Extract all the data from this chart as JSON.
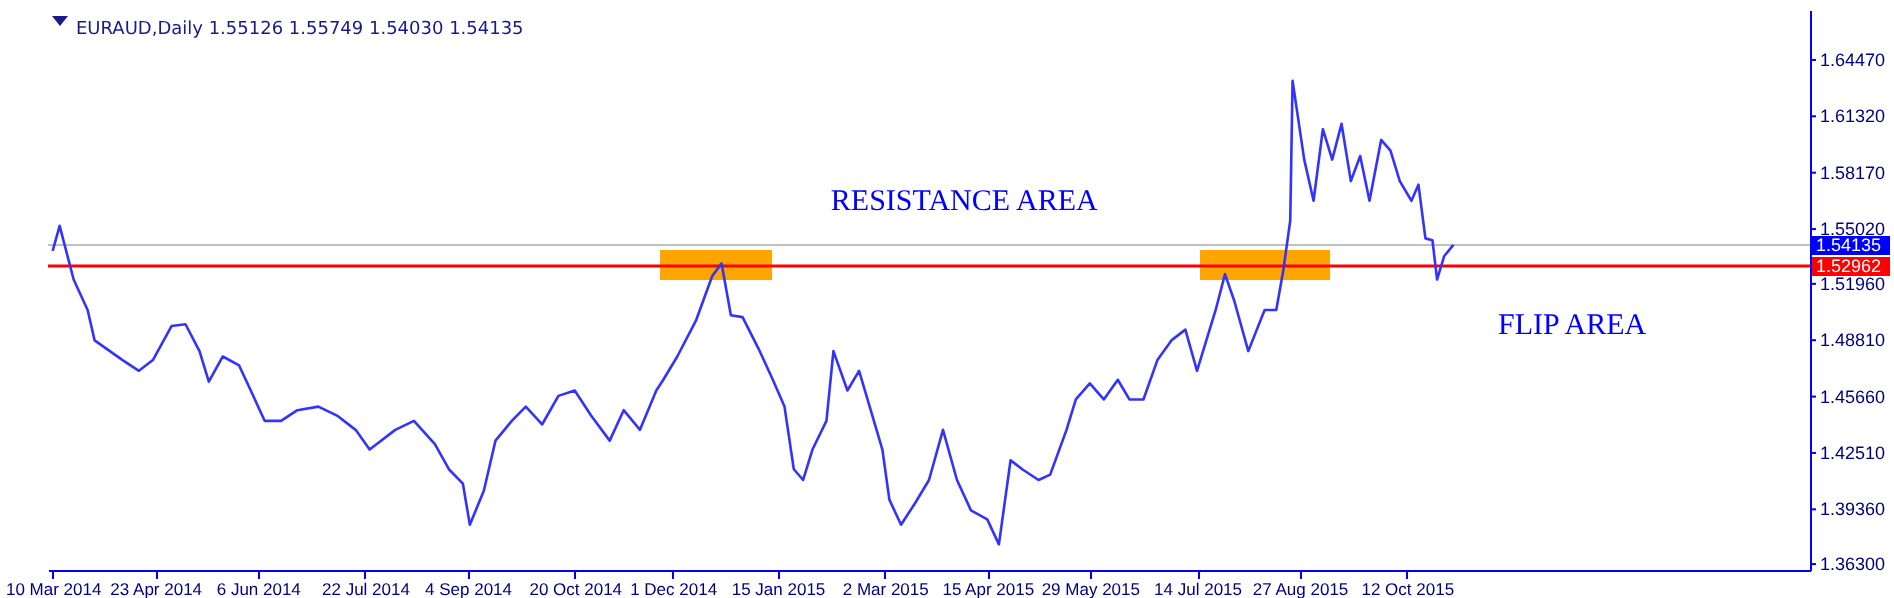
{
  "chart_data": {
    "type": "line",
    "title": "EURAUD,Daily  1.55126 1.55749 1.54030 1.54135",
    "x": [
      "2014-03-10",
      "2014-03-13",
      "2014-03-19",
      "2014-03-25",
      "2014-03-28",
      "2014-04-09",
      "2014-04-16",
      "2014-04-22",
      "2014-04-30",
      "2014-05-06",
      "2014-05-12",
      "2014-05-16",
      "2014-05-22",
      "2014-05-29",
      "2014-06-03",
      "2014-06-09",
      "2014-06-16",
      "2014-06-23",
      "2014-07-02",
      "2014-07-10",
      "2014-07-18",
      "2014-07-24",
      "2014-08-04",
      "2014-08-12",
      "2014-08-21",
      "2014-08-27",
      "2014-09-02",
      "2014-09-05",
      "2014-09-11",
      "2014-09-16",
      "2014-09-23",
      "2014-09-29",
      "2014-10-06",
      "2014-10-13",
      "2014-10-20",
      "2014-10-27",
      "2014-11-04",
      "2014-11-10",
      "2014-11-17",
      "2014-11-24",
      "2014-11-27",
      "2014-12-03",
      "2014-12-11",
      "2014-12-18",
      "2014-12-22",
      "2014-12-26",
      "2014-12-31",
      "2015-01-07",
      "2015-01-13",
      "2015-01-18",
      "2015-01-22",
      "2015-01-26",
      "2015-01-30",
      "2015-02-05",
      "2015-02-08",
      "2015-02-14",
      "2015-02-19",
      "2015-02-24",
      "2015-03-01",
      "2015-03-04",
      "2015-03-09",
      "2015-03-15",
      "2015-03-21",
      "2015-03-27",
      "2015-04-02",
      "2015-04-08",
      "2015-04-15",
      "2015-04-20",
      "2015-04-25",
      "2015-04-30",
      "2015-05-07",
      "2015-05-12",
      "2015-05-19",
      "2015-05-23",
      "2015-05-29",
      "2015-06-04",
      "2015-06-10",
      "2015-06-15",
      "2015-06-21",
      "2015-06-27",
      "2015-07-03",
      "2015-07-09",
      "2015-07-14",
      "2015-07-22",
      "2015-07-26",
      "2015-07-30",
      "2015-08-05",
      "2015-08-12",
      "2015-08-17",
      "2015-08-20",
      "2015-08-23",
      "2015-08-24",
      "2015-08-29",
      "2015-09-02",
      "2015-09-06",
      "2015-09-10",
      "2015-09-14",
      "2015-09-18",
      "2015-09-22",
      "2015-09-26",
      "2015-10-01",
      "2015-10-05",
      "2015-10-09",
      "2015-10-14",
      "2015-10-17",
      "2015-10-20",
      "2015-10-23",
      "2015-10-25",
      "2015-10-28",
      "2015-11-01"
    ],
    "series": [
      {
        "color": "#3333ff",
        "values": [
          1.538,
          1.552,
          1.522,
          1.505,
          1.488,
          1.477,
          1.471,
          1.477,
          1.496,
          1.497,
          1.482,
          1.465,
          1.479,
          1.474,
          1.46,
          1.443,
          1.443,
          1.449,
          1.451,
          1.446,
          1.438,
          1.427,
          1.438,
          1.443,
          1.43,
          1.416,
          1.408,
          1.385,
          1.404,
          1.432,
          1.443,
          1.451,
          1.441,
          1.457,
          1.46,
          1.446,
          1.432,
          1.449,
          1.438,
          1.46,
          1.466,
          1.479,
          1.499,
          1.524,
          1.531,
          1.502,
          1.501,
          1.483,
          1.466,
          1.451,
          1.416,
          1.41,
          1.427,
          1.443,
          1.482,
          1.46,
          1.471,
          1.449,
          1.427,
          1.399,
          1.385,
          1.397,
          1.41,
          1.438,
          1.41,
          1.393,
          1.388,
          1.374,
          1.421,
          1.416,
          1.41,
          1.413,
          1.438,
          1.455,
          1.464,
          1.455,
          1.466,
          1.455,
          1.455,
          1.477,
          1.488,
          1.494,
          1.471,
          1.505,
          1.525,
          1.51,
          1.482,
          1.505,
          1.505,
          1.527,
          1.555,
          1.633,
          1.589,
          1.566,
          1.606,
          1.589,
          1.609,
          1.577,
          1.591,
          1.566,
          1.6,
          1.594,
          1.577,
          1.566,
          1.575,
          1.545,
          1.544,
          1.522,
          1.535,
          1.54135
        ]
      }
    ],
    "xlim": [
      "2014-03-08",
      "2016-04-02"
    ],
    "xticks": [
      {
        "value": "2014-03-10",
        "label": "10 Mar 2014"
      },
      {
        "value": "2014-04-23",
        "label": "23 Apr 2014"
      },
      {
        "value": "2014-06-06",
        "label": "6 Jun 2014"
      },
      {
        "value": "2014-07-22",
        "label": "22 Jul 2014"
      },
      {
        "value": "2014-09-04",
        "label": "4 Sep 2014"
      },
      {
        "value": "2014-10-20",
        "label": "20 Oct 2014"
      },
      {
        "value": "2014-12-01",
        "label": "1 Dec 2014"
      },
      {
        "value": "2015-01-15",
        "label": "15 Jan 2015"
      },
      {
        "value": "2015-03-02",
        "label": "2 Mar 2015"
      },
      {
        "value": "2015-04-15",
        "label": "15 Apr 2015"
      },
      {
        "value": "2015-05-29",
        "label": "29 May 2015"
      },
      {
        "value": "2015-07-14",
        "label": "14 Jul 2015"
      },
      {
        "value": "2015-08-27",
        "label": "27 Aug 2015"
      },
      {
        "value": "2015-10-12",
        "label": "12 Oct 2015"
      }
    ],
    "ylim": [
      1.3597,
      1.6726
    ],
    "yticks": [
      {
        "value": 1.363,
        "label": "1.36300"
      },
      {
        "value": 1.3936,
        "label": "1.39360"
      },
      {
        "value": 1.4251,
        "label": "1.42510"
      },
      {
        "value": 1.4566,
        "label": "1.45660"
      },
      {
        "value": 1.4881,
        "label": "1.48810"
      },
      {
        "value": 1.5196,
        "label": "1.51960"
      },
      {
        "value": 1.5502,
        "label": "1.55020"
      },
      {
        "value": 1.5817,
        "label": "1.58170"
      },
      {
        "value": 1.6132,
        "label": "1.61320"
      },
      {
        "value": 1.6447,
        "label": "1.64470"
      }
    ],
    "ref_lines": [
      {
        "axis": "y",
        "value": 1.54135,
        "label": "1.54135",
        "color": "#c0c0c0"
      },
      {
        "axis": "y",
        "value": 1.52962,
        "label": "1.52962",
        "color": "#ff0000"
      }
    ],
    "annotations": [
      "RESISTANCE AREA",
      "FLIP AREA"
    ],
    "marker": "none",
    "line_style": "solid",
    "grid": false
  }
}
